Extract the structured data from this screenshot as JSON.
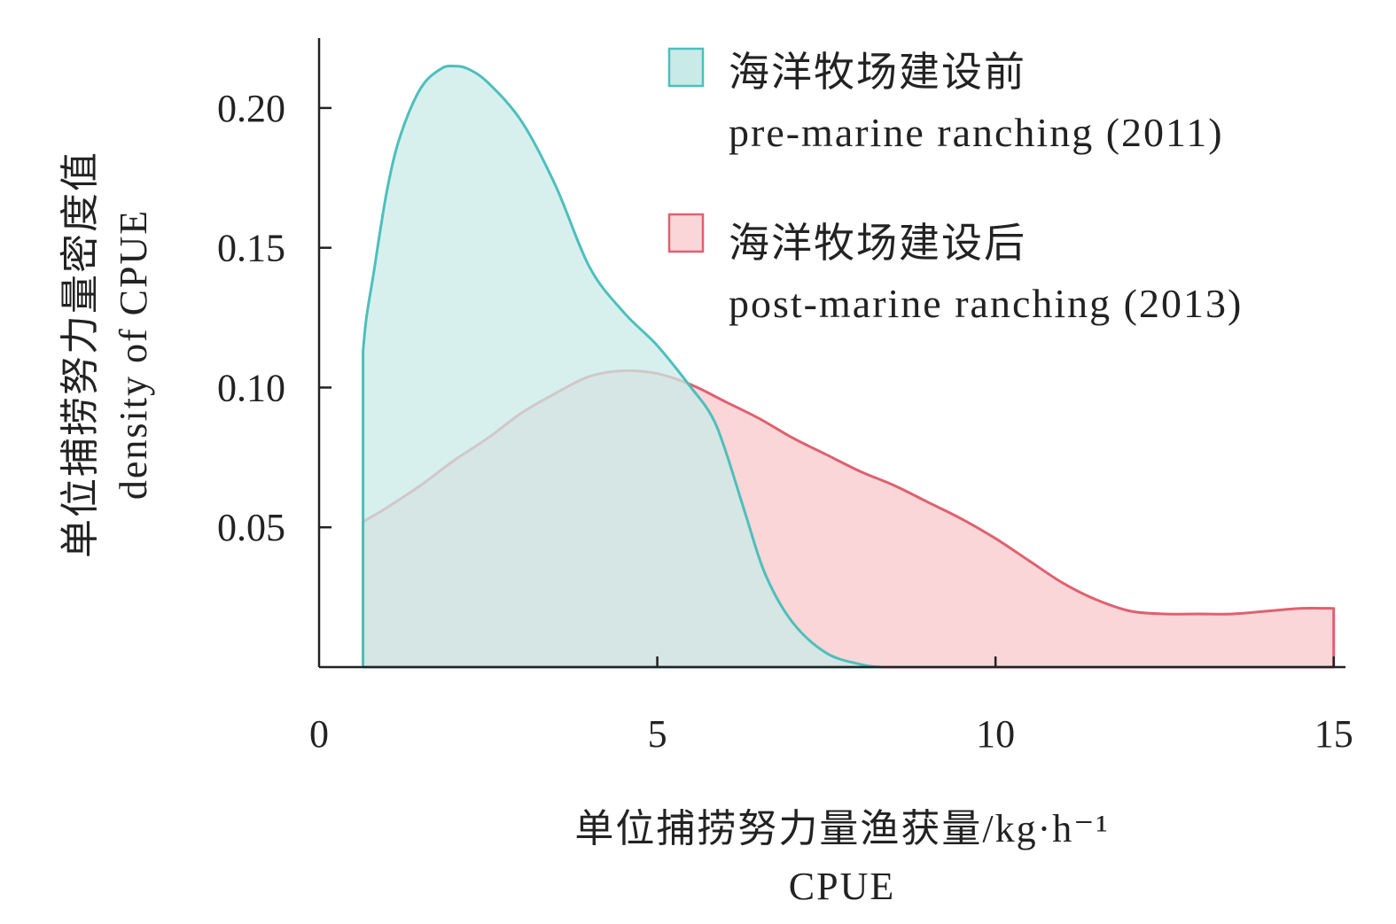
{
  "chart_data": {
    "type": "area",
    "title": "",
    "xlabel": [
      "单位捕捞努力量渔获量/kg·h⁻¹",
      "CPUE"
    ],
    "ylabel": [
      "单位捕捞努力量密度值",
      "density of CPUE"
    ],
    "xlim": [
      0,
      15.2
    ],
    "ylim": [
      0,
      0.225
    ],
    "xticks": [
      0,
      5,
      10,
      15
    ],
    "xtick_labels": [
      "0",
      "5",
      "10",
      "15"
    ],
    "yticks": [
      0.05,
      0.1,
      0.15,
      0.2
    ],
    "ytick_labels": [
      "0.05",
      "0.10",
      "0.15",
      "0.20"
    ],
    "grid": false,
    "legend_position": "top-right",
    "series": [
      {
        "name": [
          "海洋牧场建设前",
          "pre-marine ranching (2011)"
        ],
        "color": "#4dbfbb",
        "fill": "#c9ebe8",
        "x": [
          0.65,
          0.65,
          0.7,
          0.8,
          1.0,
          1.2,
          1.5,
          1.8,
          2.0,
          2.2,
          2.5,
          3.0,
          3.5,
          4.0,
          4.5,
          5.0,
          5.5,
          5.8,
          6.0,
          6.3,
          6.6,
          7.0,
          7.5,
          8.0,
          8.3
        ],
        "y": [
          0.0,
          0.113,
          0.125,
          0.14,
          0.17,
          0.19,
          0.207,
          0.214,
          0.215,
          0.214,
          0.209,
          0.195,
          0.172,
          0.143,
          0.127,
          0.115,
          0.1,
          0.09,
          0.078,
          0.055,
          0.033,
          0.016,
          0.005,
          0.001,
          0.0
        ]
      },
      {
        "name": [
          "海洋牧场建设后",
          "post-marine ranching (2013)"
        ],
        "color": "#e06070",
        "fill": "#fad6d8",
        "x": [
          0.65,
          0.65,
          1.0,
          1.5,
          2.0,
          2.5,
          3.0,
          3.5,
          4.0,
          4.5,
          5.0,
          5.5,
          6.0,
          6.5,
          7.0,
          7.5,
          8.0,
          8.5,
          9.0,
          9.5,
          10.0,
          10.5,
          11.0,
          11.5,
          12.0,
          12.5,
          13.0,
          13.5,
          14.0,
          14.5,
          15.0,
          15.0
        ],
        "y": [
          0.0,
          0.052,
          0.057,
          0.065,
          0.074,
          0.082,
          0.091,
          0.098,
          0.104,
          0.106,
          0.105,
          0.101,
          0.095,
          0.089,
          0.082,
          0.076,
          0.07,
          0.065,
          0.059,
          0.053,
          0.046,
          0.038,
          0.03,
          0.024,
          0.02,
          0.019,
          0.019,
          0.019,
          0.02,
          0.021,
          0.021,
          0.0
        ]
      }
    ]
  }
}
